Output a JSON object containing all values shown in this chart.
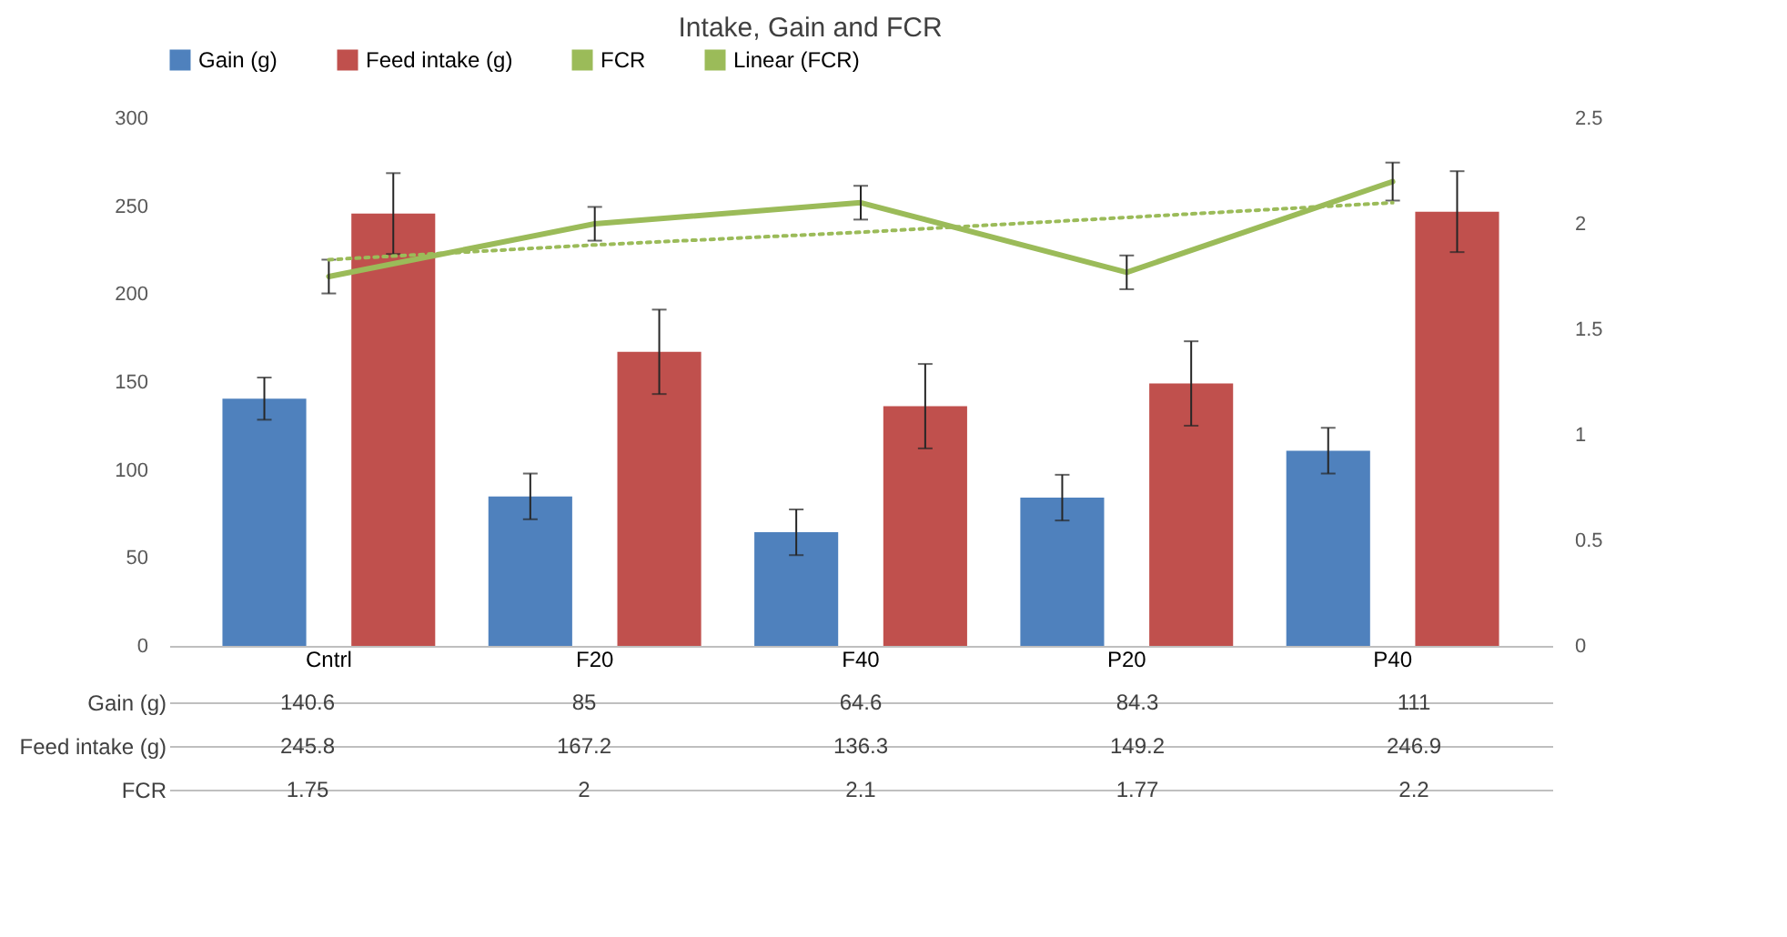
{
  "chart_data": {
    "type": "bar",
    "title": "Intake, Gain and FCR",
    "categories": [
      "Cntrl",
      "F20",
      "F40",
      "P20",
      "P40"
    ],
    "series": [
      {
        "name": "Gain (g)",
        "color": "#4f81bd",
        "values": [
          140.6,
          85,
          64.6,
          84.3,
          111
        ],
        "value_labels": [
          "140.6",
          "85",
          "64.6",
          "84.3",
          "111"
        ],
        "errors": [
          12,
          13,
          13,
          13,
          13
        ]
      },
      {
        "name": "Feed intake (g)",
        "color": "#c0504d",
        "values": [
          245.8,
          167.2,
          136.3,
          149.2,
          246.9
        ],
        "value_labels": [
          "245.8",
          "167.2",
          "136.3",
          "149.2",
          "246.9"
        ],
        "errors": [
          23,
          24,
          24,
          24,
          23
        ]
      },
      {
        "name": "FCR",
        "type": "line",
        "axis": "y2",
        "color": "#9bbb59",
        "values": [
          1.75,
          2,
          2.1,
          1.77,
          2.2
        ],
        "value_labels": [
          "1.75",
          "2",
          "2.1",
          "1.77",
          "2.2"
        ],
        "errors": [
          0.08,
          0.08,
          0.08,
          0.08,
          0.09
        ]
      },
      {
        "name": "Linear (FCR)",
        "type": "line",
        "axis": "y2",
        "color": "#9bbb59",
        "line_style": "dotted",
        "values": [
          1.83,
          1.9,
          1.96,
          2.03,
          2.1
        ]
      }
    ],
    "ylim": [
      0,
      300
    ],
    "yticks": [
      0,
      50,
      100,
      150,
      200,
      250,
      300
    ],
    "y2lim": [
      0,
      2.5
    ],
    "y2ticks": [
      0,
      0.5,
      1,
      1.5,
      2,
      2.5
    ],
    "legend": "top",
    "grid": false
  }
}
